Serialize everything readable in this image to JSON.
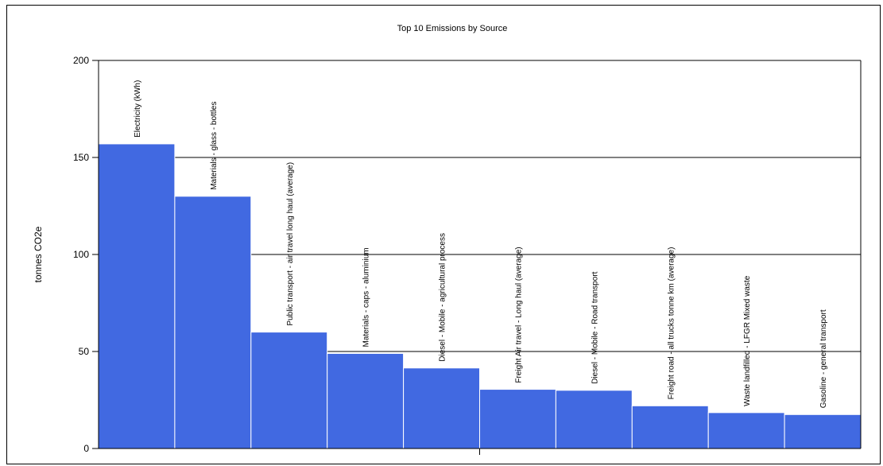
{
  "chart_data": {
    "type": "bar",
    "title": "Top 10 Emissions by Source",
    "xlabel": "",
    "ylabel": "tonnes CO2e",
    "ylim": [
      0,
      200
    ],
    "yticks": [
      "0",
      "50",
      "100",
      "150",
      "200"
    ],
    "grid": true,
    "legend": "none",
    "categories": [
      "Electricity (kWh)",
      "Materials - glass - bottles",
      "Public transport - air travel long haul (average)",
      "Materials - caps - aluminium",
      "Diesel - Mobile - agricultural process",
      "Freight Air travel - Long haul (average)",
      "Diesel - Mobile - Road transport",
      "Freight road - all trucks tonne km (average)",
      "Waste landfilled - LFGR Mixed waste",
      "Gasoline - general transport"
    ],
    "values": [
      157,
      130,
      60,
      49,
      41.5,
      30.5,
      30,
      22,
      18.5,
      17.5
    ],
    "colors": {
      "bar": "#4169e1",
      "grid": "#000000",
      "axis": "#000000",
      "background": "#ffffff"
    }
  }
}
